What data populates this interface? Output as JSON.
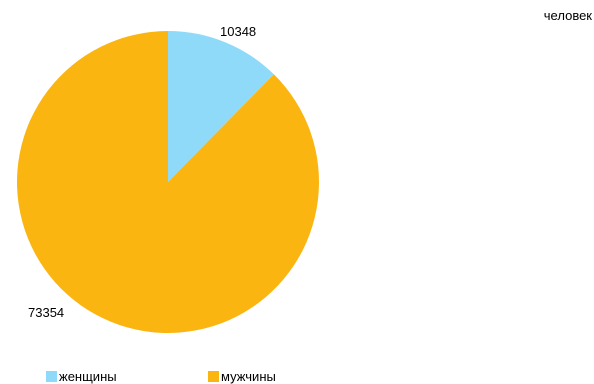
{
  "unit_label": "человек",
  "chart_data": {
    "type": "pie",
    "start_angle_deg": 0,
    "direction": "clockwise",
    "legend_position": "bottom",
    "slices": [
      {
        "label": "женщины",
        "value": 10348,
        "color": "#8fdaf8"
      },
      {
        "label": "мужчины",
        "value": 73354,
        "color": "#fbb511"
      }
    ]
  }
}
